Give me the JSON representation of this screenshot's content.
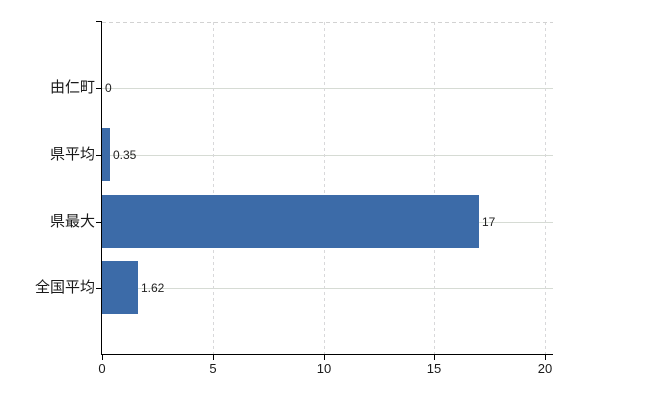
{
  "chart_data": {
    "type": "bar",
    "orientation": "horizontal",
    "categories": [
      "由仁町",
      "県平均",
      "県最大",
      "全国平均"
    ],
    "values": [
      0,
      0.35,
      17,
      1.62
    ],
    "value_labels": [
      "0",
      "0.35",
      "17",
      "1.62"
    ],
    "x_ticks": [
      "0",
      "5",
      "10",
      "15",
      "20"
    ],
    "xlim": [
      0,
      20
    ],
    "grid": true,
    "legend_position": "none",
    "title": "",
    "xlabel": "",
    "ylabel": "",
    "colors": {
      "bar": "#3c6ba8",
      "axis": "#000000",
      "grid_horizontal": "#d6dbd4",
      "grid_vertical": "#d8d8da",
      "plot_top_border": "#d2d2d2",
      "tick_label": "#1a1a1a",
      "value_label": "#222222",
      "background": "#ffffff"
    }
  }
}
